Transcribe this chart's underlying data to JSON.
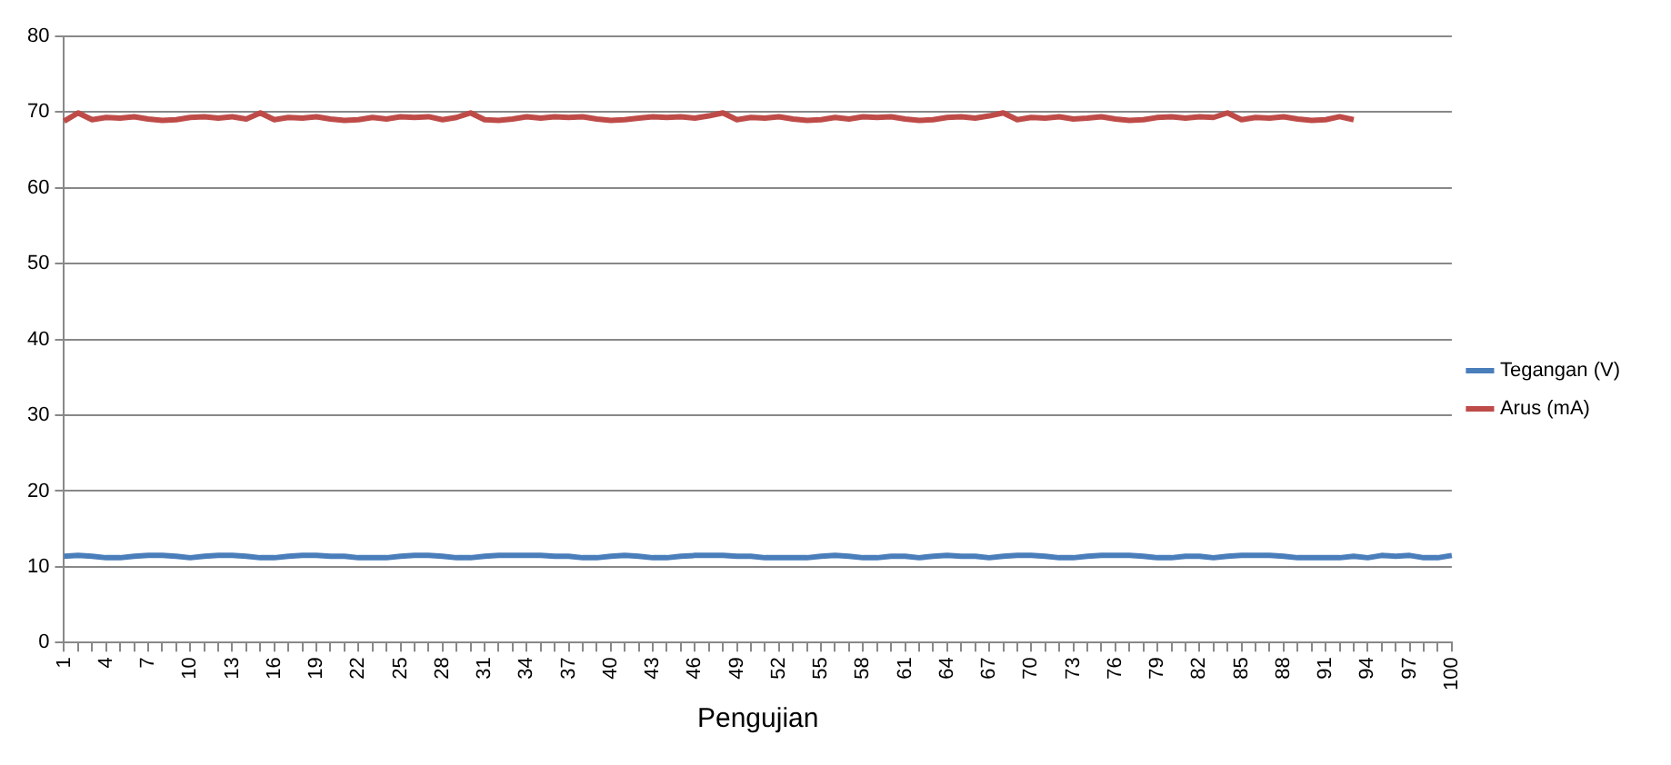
{
  "chart_data": {
    "type": "line",
    "xlabel": "Pengujian",
    "categories": [
      "1",
      null,
      null,
      "4",
      null,
      null,
      "7",
      null,
      null,
      "10",
      null,
      null,
      "13",
      null,
      null,
      "16",
      null,
      null,
      "19",
      null,
      null,
      "22",
      null,
      null,
      "25",
      null,
      null,
      "28",
      null,
      null,
      "31",
      null,
      null,
      "34",
      null,
      null,
      "37",
      null,
      null,
      "40",
      null,
      null,
      "43",
      null,
      null,
      "46",
      null,
      null,
      "49",
      null,
      null,
      "52",
      null,
      null,
      "55",
      null,
      null,
      "58",
      null,
      null,
      "61",
      null,
      null,
      "64",
      null,
      null,
      "67",
      null,
      null,
      "70",
      null,
      null,
      "73",
      null,
      null,
      "76",
      null,
      null,
      "79",
      null,
      null,
      "82",
      null,
      null,
      "85",
      null,
      null,
      "88",
      null,
      null,
      "91",
      null,
      null,
      "94",
      null,
      null,
      "97",
      null,
      null,
      "100"
    ],
    "series": [
      {
        "name": "Tegangan (V)",
        "color": "#4a7ebb",
        "values": [
          11.4,
          11.5,
          11.4,
          11.2,
          11.2,
          11.4,
          11.5,
          11.5,
          11.4,
          11.2,
          11.4,
          11.5,
          11.5,
          11.4,
          11.2,
          11.2,
          11.4,
          11.5,
          11.5,
          11.4,
          11.4,
          11.2,
          11.2,
          11.2,
          11.4,
          11.5,
          11.5,
          11.4,
          11.2,
          11.2,
          11.4,
          11.5,
          11.5,
          11.5,
          11.5,
          11.4,
          11.4,
          11.2,
          11.2,
          11.4,
          11.5,
          11.4,
          11.2,
          11.2,
          11.4,
          11.5,
          11.5,
          11.5,
          11.4,
          11.4,
          11.2,
          11.2,
          11.2,
          11.2,
          11.4,
          11.5,
          11.4,
          11.2,
          11.2,
          11.4,
          11.4,
          11.2,
          11.4,
          11.5,
          11.4,
          11.4,
          11.2,
          11.4,
          11.5,
          11.5,
          11.4,
          11.2,
          11.2,
          11.4,
          11.5,
          11.5,
          11.5,
          11.4,
          11.2,
          11.2,
          11.4,
          11.4,
          11.2,
          11.4,
          11.5,
          11.5,
          11.5,
          11.4,
          11.2,
          11.2,
          11.2,
          11.2,
          11.4,
          11.2,
          11.5,
          11.4,
          11.5,
          11.2,
          11.2,
          11.5
        ]
      },
      {
        "name": "Arus (mA)",
        "color": "#be4b48",
        "values": [
          68.8,
          69.9,
          69.0,
          69.3,
          69.2,
          69.4,
          69.1,
          68.9,
          69.0,
          69.3,
          69.4,
          69.2,
          69.4,
          69.1,
          69.9,
          69.0,
          69.3,
          69.2,
          69.4,
          69.1,
          68.9,
          69.0,
          69.3,
          69.1,
          69.4,
          69.3,
          69.4,
          69.0,
          69.3,
          69.9,
          69.0,
          68.9,
          69.1,
          69.4,
          69.2,
          69.4,
          69.3,
          69.4,
          69.1,
          68.9,
          69.0,
          69.2,
          69.4,
          69.3,
          69.4,
          69.2,
          69.5,
          69.9,
          69.0,
          69.3,
          69.2,
          69.4,
          69.1,
          68.9,
          69.0,
          69.3,
          69.1,
          69.4,
          69.3,
          69.4,
          69.1,
          68.9,
          69.0,
          69.3,
          69.4,
          69.2,
          69.5,
          69.9,
          69.0,
          69.3,
          69.2,
          69.4,
          69.1,
          69.2,
          69.4,
          69.1,
          68.9,
          69.0,
          69.3,
          69.4,
          69.2,
          69.4,
          69.3,
          69.9,
          69.0,
          69.3,
          69.2,
          69.4,
          69.1,
          68.9,
          69.0,
          69.4,
          69.0,
          null,
          null,
          null,
          null,
          null,
          null,
          null
        ]
      }
    ],
    "ylim": [
      0,
      80
    ],
    "yticks": [
      0,
      10,
      20,
      30,
      40,
      50,
      60,
      70,
      80
    ],
    "grid": "y",
    "legend": "right",
    "marker": "none",
    "line_style": "solid"
  }
}
